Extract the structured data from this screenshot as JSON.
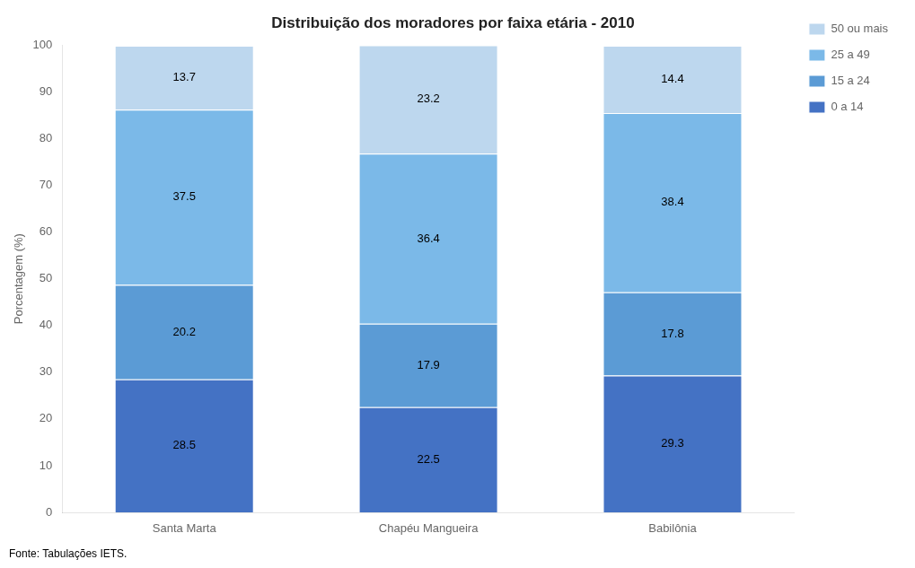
{
  "chart_data": {
    "type": "bar",
    "title": "Distribuição dos moradores por faixa etária - 2010",
    "ylabel": "Porcentagem (%)",
    "categories": [
      "Santa Marta",
      "Chapéu Mangueira",
      "Babilônia"
    ],
    "series": [
      {
        "name": "0 a 14",
        "color": "#4472C4",
        "values": [
          28.5,
          22.5,
          29.3
        ]
      },
      {
        "name": "15 a 24",
        "color": "#5B9BD5",
        "values": [
          20.2,
          17.9,
          17.8
        ]
      },
      {
        "name": "25 a 49",
        "color": "#7BB9E8",
        "values": [
          37.5,
          36.4,
          38.4
        ]
      },
      {
        "name": "50 ou mais",
        "color": "#BDD7EE",
        "values": [
          13.7,
          23.2,
          14.4
        ]
      }
    ],
    "stacked": true,
    "data_labels": true,
    "ylim": [
      0,
      100
    ],
    "yticks": [
      0,
      10,
      20,
      30,
      40,
      50,
      60,
      70,
      80,
      90,
      100
    ],
    "grid": false,
    "legend": "right",
    "annotations": [
      "Fonte: Tabulações IETS."
    ]
  }
}
